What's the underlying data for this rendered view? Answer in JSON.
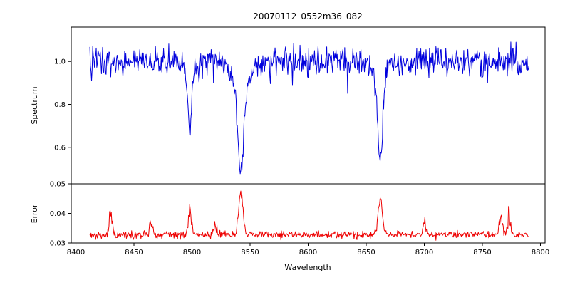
{
  "title": "20070112_0552m36_082",
  "x_axis": {
    "label": "Wavelength",
    "tick_values": [
      8400,
      8450,
      8500,
      8550,
      8600,
      8650,
      8700,
      8750,
      8800
    ],
    "tick_labels": [
      "8400",
      "8450",
      "8500",
      "8550",
      "8600",
      "8650",
      "8700",
      "8750",
      "8800"
    ],
    "xlim": [
      8396,
      8804
    ]
  },
  "chart_data": [
    {
      "type": "line",
      "panel": "spectrum",
      "title": "20070112_0552m36_082",
      "ylabel": "Spectrum",
      "color": "#0000dd",
      "x_range": [
        8412,
        8790
      ],
      "x_step": 0.5,
      "ylim": [
        0.43,
        1.16
      ],
      "y_tick_values": [
        0.6,
        0.8,
        1.0
      ],
      "y_tick_labels": [
        "0.6",
        "0.8",
        "1.0"
      ],
      "baseline": 1.0,
      "noise_sigma": 0.034,
      "wing_frac": 0.25,
      "wing_sigma_mult": 3,
      "absorption_lines": [
        {
          "center": 8498,
          "depth": 0.27,
          "sigma": 1.5
        },
        {
          "center": 8542,
          "depth": 0.42,
          "sigma": 2.5
        },
        {
          "center": 8662,
          "depth": 0.36,
          "sigma": 2.0
        }
      ],
      "seed": 42,
      "legend": "none",
      "grid": false
    },
    {
      "type": "line",
      "panel": "error",
      "ylabel": "Error",
      "color": "#ee0000",
      "x_range": [
        8412,
        8790
      ],
      "x_step": 0.5,
      "ylim": [
        0.03,
        0.05
      ],
      "y_tick_values": [
        0.03,
        0.04,
        0.05
      ],
      "y_tick_labels": [
        "0.03",
        "0.04",
        "0.05"
      ],
      "baseline": 0.0328,
      "noise_sigma": 0.0006,
      "peaks": [
        {
          "center": 8430,
          "height": 0.0078,
          "sigma": 1.2
        },
        {
          "center": 8465,
          "height": 0.0042,
          "sigma": 1.3
        },
        {
          "center": 8498,
          "height": 0.0068,
          "sigma": 1.6
        },
        {
          "center": 8520,
          "height": 0.0018,
          "sigma": 1.5
        },
        {
          "center": 8542,
          "height": 0.014,
          "sigma": 1.9
        },
        {
          "center": 8662,
          "height": 0.0115,
          "sigma": 1.9
        },
        {
          "center": 8700,
          "height": 0.0032,
          "sigma": 1.5
        },
        {
          "center": 8766,
          "height": 0.0068,
          "sigma": 1.3
        },
        {
          "center": 8773,
          "height": 0.005,
          "sigma": 1.2
        }
      ],
      "seed": 7,
      "legend": "none",
      "grid": false
    }
  ]
}
